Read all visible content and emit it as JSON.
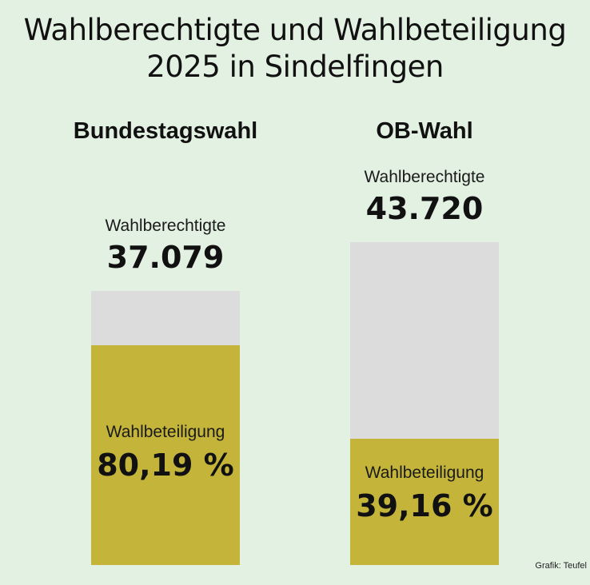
{
  "title_line1": "Wahlberechtigte und Wahlbeteiligung",
  "title_line2": "2025 in Sindelfingen",
  "credit": "Grafik: Teufel",
  "colors": {
    "background": "#e3f1e3",
    "bar_total": "#dcdcdc",
    "bar_turnout": "#c4b53a"
  },
  "chart_data": {
    "type": "bar",
    "title": "Wahlberechtigte und Wahlbeteiligung 2025 in Sindelfingen",
    "categories": [
      "Bundestagswahl",
      "OB-Wahl"
    ],
    "series": [
      {
        "name": "Wahlberechtigte",
        "values": [
          37079,
          43720
        ],
        "value_labels": [
          "37.079",
          "43.720"
        ]
      },
      {
        "name": "Wahlbeteiligung",
        "values": [
          80.19,
          39.16
        ],
        "value_labels": [
          "80,19 %",
          "39,16 %"
        ],
        "unit": "%"
      }
    ],
    "labels": {
      "eligible": "Wahlberechtigte",
      "turnout": "Wahlbeteiligung"
    }
  }
}
